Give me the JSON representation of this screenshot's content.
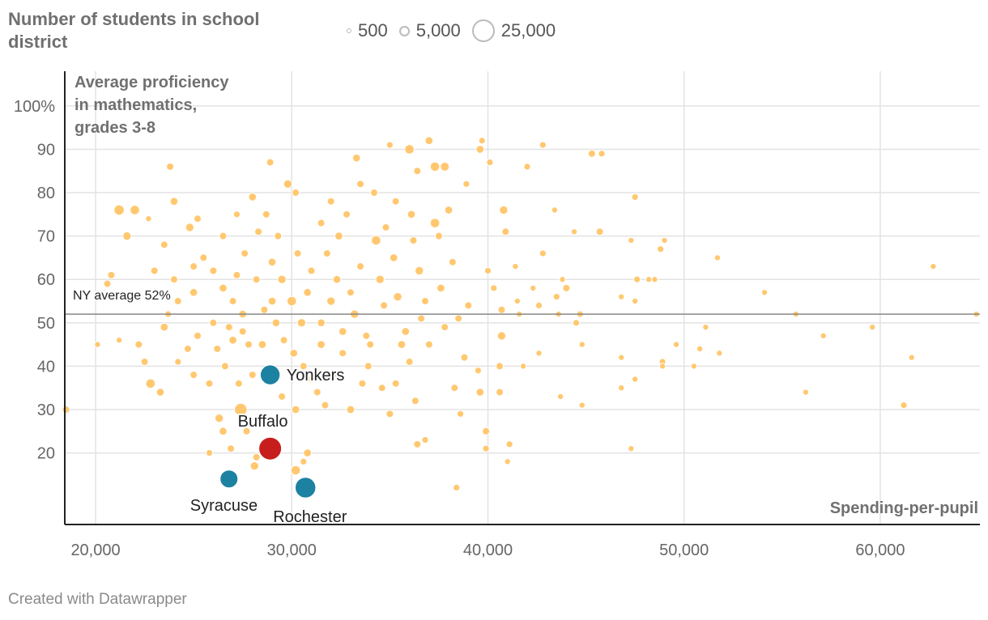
{
  "legend": {
    "title": "Number of students in school district",
    "items": [
      {
        "label": "500",
        "students": 500
      },
      {
        "label": "5,000",
        "students": 5000
      },
      {
        "label": "25,000",
        "students": 25000
      }
    ]
  },
  "footer": "Created with Datawrapper",
  "colors": {
    "point": "#ffc870",
    "highlight_blue": "#1d81a2",
    "highlight_red": "#c71e1d",
    "avg_line": "#888888",
    "grid": "#e3e3e3"
  },
  "chart_data": {
    "type": "scatter",
    "ylabel": "Average proficiency in mathematics, grades 3-8",
    "ylabel_lines": [
      "Average proficiency",
      "in mathematics,",
      "grades 3-8"
    ],
    "xlabel": "Spending-per-pupil",
    "xlim": [
      18430,
      65080
    ],
    "ylim": [
      3.5,
      108
    ],
    "xticks": [
      {
        "v": 20000,
        "label": "20,000"
      },
      {
        "v": 30000,
        "label": "30,000"
      },
      {
        "v": 40000,
        "label": "40,000"
      },
      {
        "v": 50000,
        "label": "50,000"
      },
      {
        "v": 60000,
        "label": "60,000"
      }
    ],
    "yticks": [
      {
        "v": 100,
        "label": "100%"
      },
      {
        "v": 90,
        "label": "90"
      },
      {
        "v": 80,
        "label": "80"
      },
      {
        "v": 70,
        "label": "70"
      },
      {
        "v": 60,
        "label": "60"
      },
      {
        "v": 50,
        "label": "50"
      },
      {
        "v": 40,
        "label": "40"
      },
      {
        "v": 30,
        "label": "30"
      },
      {
        "v": 20,
        "label": "20"
      }
    ],
    "reference_line": {
      "value": 52,
      "label": "NY average 52%"
    },
    "point_fields": [
      "spending",
      "proficiency",
      "students"
    ],
    "points": [
      [
        18500,
        30,
        3000
      ],
      [
        21200,
        76,
        6000
      ],
      [
        22000,
        76,
        5000
      ],
      [
        21600,
        70,
        4000
      ],
      [
        20600,
        59,
        3000
      ],
      [
        20100,
        45,
        2000
      ],
      [
        20800,
        61,
        3000
      ],
      [
        21200,
        46,
        2000
      ],
      [
        23800,
        86,
        3000
      ],
      [
        24000,
        78,
        3500
      ],
      [
        24800,
        72,
        4000
      ],
      [
        25200,
        74,
        3000
      ],
      [
        24000,
        60,
        3000
      ],
      [
        25000,
        57,
        3500
      ],
      [
        23500,
        49,
        3500
      ],
      [
        22800,
        36,
        5000
      ],
      [
        23300,
        34,
        3500
      ],
      [
        22500,
        41,
        3000
      ],
      [
        22200,
        45,
        3000
      ],
      [
        23000,
        62,
        3000
      ],
      [
        23500,
        68,
        3000
      ],
      [
        22700,
        74,
        2000
      ],
      [
        26300,
        28,
        4000
      ],
      [
        26500,
        25,
        3500
      ],
      [
        25800,
        20,
        2500
      ],
      [
        26900,
        21,
        3000
      ],
      [
        27400,
        30,
        9000
      ],
      [
        26600,
        40,
        3000
      ],
      [
        27000,
        46,
        3500
      ],
      [
        27500,
        48,
        3000
      ],
      [
        28000,
        79,
        3500
      ],
      [
        28900,
        87,
        3000
      ],
      [
        29800,
        82,
        4000
      ],
      [
        30200,
        80,
        3000
      ],
      [
        28300,
        71,
        3000
      ],
      [
        29000,
        64,
        3500
      ],
      [
        29500,
        60,
        4000
      ],
      [
        30000,
        55,
        5000
      ],
      [
        30500,
        50,
        4000
      ],
      [
        29000,
        55,
        3500
      ],
      [
        28500,
        45,
        3500
      ],
      [
        27800,
        45,
        3000
      ],
      [
        28000,
        38,
        3000
      ],
      [
        27300,
        36,
        3000
      ],
      [
        29500,
        33,
        3000
      ],
      [
        30200,
        30,
        3500
      ],
      [
        30800,
        20,
        3500
      ],
      [
        30200,
        16,
        5000
      ],
      [
        30600,
        18,
        2500
      ],
      [
        28100,
        17,
        4000
      ],
      [
        28200,
        19,
        3000
      ],
      [
        27700,
        25,
        3000
      ],
      [
        31000,
        62,
        3000
      ],
      [
        31500,
        73,
        3000
      ],
      [
        32000,
        78,
        3000
      ],
      [
        32400,
        70,
        3500
      ],
      [
        32300,
        60,
        3500
      ],
      [
        32000,
        55,
        4000
      ],
      [
        31500,
        50,
        3500
      ],
      [
        32600,
        43,
        3000
      ],
      [
        33200,
        52,
        4000
      ],
      [
        33600,
        36,
        3000
      ],
      [
        33000,
        30,
        3500
      ],
      [
        33800,
        47,
        3000
      ],
      [
        33300,
        88,
        3500
      ],
      [
        33500,
        82,
        3000
      ],
      [
        34200,
        80,
        3000
      ],
      [
        34300,
        69,
        5000
      ],
      [
        34500,
        60,
        4000
      ],
      [
        34000,
        45,
        3000
      ],
      [
        34600,
        35,
        3000
      ],
      [
        35000,
        91,
        2500
      ],
      [
        35300,
        78,
        3000
      ],
      [
        35200,
        65,
        3500
      ],
      [
        35400,
        56,
        4000
      ],
      [
        35600,
        45,
        3500
      ],
      [
        35000,
        29,
        3000
      ],
      [
        36000,
        90,
        5000
      ],
      [
        36400,
        85,
        3000
      ],
      [
        36100,
        75,
        3500
      ],
      [
        36200,
        69,
        3000
      ],
      [
        36500,
        62,
        4000
      ],
      [
        36600,
        51,
        3000
      ],
      [
        36000,
        41,
        3000
      ],
      [
        36400,
        22,
        3000
      ],
      [
        37000,
        92,
        3500
      ],
      [
        37300,
        86,
        5000
      ],
      [
        37300,
        73,
        5000
      ],
      [
        37500,
        70,
        3000
      ],
      [
        37600,
        58,
        3500
      ],
      [
        37000,
        45,
        3000
      ],
      [
        36800,
        23,
        2500
      ],
      [
        37800,
        86,
        4500
      ],
      [
        38000,
        76,
        3500
      ],
      [
        38200,
        64,
        3000
      ],
      [
        38500,
        51,
        3000
      ],
      [
        38800,
        42,
        3000
      ],
      [
        38300,
        35,
        3000
      ],
      [
        38600,
        29,
        2500
      ],
      [
        38400,
        12,
        2500
      ],
      [
        38900,
        82,
        2500
      ],
      [
        39600,
        90,
        3500
      ],
      [
        39700,
        92,
        2500
      ],
      [
        39000,
        54,
        3000
      ],
      [
        39500,
        39,
        2500
      ],
      [
        39600,
        34,
        3500
      ],
      [
        39900,
        25,
        3000
      ],
      [
        39900,
        21,
        2500
      ],
      [
        40100,
        87,
        2500
      ],
      [
        40000,
        62,
        2500
      ],
      [
        40300,
        58,
        2500
      ],
      [
        40700,
        53,
        3000
      ],
      [
        40700,
        47,
        4000
      ],
      [
        40800,
        76,
        4000
      ],
      [
        40900,
        71,
        3000
      ],
      [
        40600,
        40,
        3000
      ],
      [
        40600,
        34,
        3000
      ],
      [
        41100,
        22,
        2500
      ],
      [
        41000,
        18,
        2000
      ],
      [
        41400,
        63,
        2000
      ],
      [
        41500,
        55,
        2000
      ],
      [
        41600,
        52,
        2000
      ],
      [
        41800,
        40,
        2000
      ],
      [
        42000,
        86,
        2500
      ],
      [
        42300,
        58,
        2000
      ],
      [
        42600,
        54,
        2500
      ],
      [
        42600,
        43,
        2000
      ],
      [
        42800,
        91,
        2500
      ],
      [
        42800,
        66,
        2500
      ],
      [
        43400,
        76,
        2000
      ],
      [
        43500,
        56,
        2500
      ],
      [
        43600,
        52,
        2000
      ],
      [
        43700,
        33,
        2000
      ],
      [
        43800,
        60,
        2000
      ],
      [
        44000,
        58,
        3000
      ],
      [
        44400,
        71,
        2000
      ],
      [
        44700,
        52,
        2500
      ],
      [
        44500,
        50,
        2500
      ],
      [
        44800,
        45,
        2000
      ],
      [
        44800,
        31,
        2000
      ],
      [
        45300,
        89,
        3000
      ],
      [
        45800,
        89,
        2500
      ],
      [
        45700,
        71,
        3000
      ],
      [
        46800,
        56,
        2000
      ],
      [
        46800,
        42,
        2000
      ],
      [
        46800,
        35,
        2000
      ],
      [
        47300,
        69,
        2000
      ],
      [
        47300,
        21,
        2000
      ],
      [
        47500,
        79,
        2500
      ],
      [
        47600,
        60,
        2500
      ],
      [
        47500,
        55,
        2000
      ],
      [
        47500,
        37,
        2000
      ],
      [
        48200,
        60,
        2000
      ],
      [
        48500,
        60,
        2000
      ],
      [
        48800,
        67,
        2500
      ],
      [
        49000,
        69,
        2000
      ],
      [
        48900,
        41,
        2500
      ],
      [
        48900,
        40,
        2000
      ],
      [
        49600,
        45,
        2000
      ],
      [
        50500,
        40,
        2000
      ],
      [
        50800,
        44,
        2000
      ],
      [
        51100,
        49,
        2000
      ],
      [
        51700,
        65,
        2000
      ],
      [
        51800,
        43,
        2000
      ],
      [
        54100,
        57,
        2000
      ],
      [
        55700,
        52,
        2000
      ],
      [
        56200,
        34,
        2000
      ],
      [
        57100,
        47,
        2000
      ],
      [
        59600,
        49,
        2000
      ],
      [
        61200,
        31,
        2500
      ],
      [
        61600,
        42,
        2000
      ],
      [
        62700,
        63,
        2000
      ],
      [
        64900,
        52,
        2000
      ],
      [
        25500,
        65,
        3000
      ],
      [
        26000,
        62,
        3000
      ],
      [
        26500,
        58,
        3500
      ],
      [
        27000,
        55,
        3000
      ],
      [
        27500,
        52,
        3500
      ],
      [
        26000,
        50,
        3000
      ],
      [
        25200,
        47,
        3000
      ],
      [
        24700,
        44,
        3000
      ],
      [
        24200,
        41,
        2500
      ],
      [
        25000,
        38,
        3000
      ],
      [
        25800,
        36,
        3000
      ],
      [
        26200,
        44,
        3000
      ],
      [
        26800,
        49,
        3000
      ],
      [
        27200,
        61,
        3000
      ],
      [
        27600,
        66,
        3000
      ],
      [
        28200,
        60,
        3000
      ],
      [
        28600,
        53,
        3000
      ],
      [
        29200,
        50,
        3500
      ],
      [
        29600,
        46,
        3000
      ],
      [
        30100,
        43,
        3500
      ],
      [
        30600,
        40,
        3000
      ],
      [
        31000,
        37,
        3000
      ],
      [
        31300,
        34,
        3000
      ],
      [
        31700,
        31,
        3000
      ],
      [
        32200,
        38,
        3000
      ],
      [
        32600,
        48,
        3500
      ],
      [
        33000,
        57,
        3000
      ],
      [
        33500,
        63,
        3000
      ],
      [
        31500,
        45,
        3500
      ],
      [
        30800,
        57,
        3500
      ],
      [
        30300,
        66,
        3000
      ],
      [
        29300,
        70,
        3000
      ],
      [
        28700,
        75,
        3000
      ],
      [
        27200,
        75,
        2500
      ],
      [
        26500,
        70,
        3000
      ],
      [
        25000,
        63,
        3000
      ],
      [
        24200,
        55,
        3000
      ],
      [
        23700,
        52,
        2500
      ],
      [
        31800,
        66,
        3000
      ],
      [
        32800,
        75,
        3000
      ],
      [
        34800,
        72,
        3000
      ],
      [
        35800,
        48,
        3500
      ],
      [
        34700,
        54,
        3000
      ],
      [
        36800,
        55,
        3000
      ],
      [
        37800,
        49,
        3000
      ],
      [
        33900,
        40,
        3000
      ],
      [
        35300,
        36,
        3000
      ],
      [
        36300,
        32,
        3000
      ]
    ],
    "highlights": [
      {
        "name": "Yonkers",
        "spending": 28900,
        "proficiency": 38,
        "students": 22000,
        "color": "#1d81a2",
        "label_pos": "right"
      },
      {
        "name": "Buffalo",
        "spending": 28900,
        "proficiency": 21,
        "students": 29000,
        "color": "#c71e1d",
        "label_pos": "above"
      },
      {
        "name": "Syracuse",
        "spending": 26800,
        "proficiency": 14,
        "students": 18000,
        "color": "#1d81a2",
        "label_pos": "below"
      },
      {
        "name": "Rochester",
        "spending": 30700,
        "proficiency": 12,
        "students": 24000,
        "color": "#1d81a2",
        "label_pos": "below"
      }
    ]
  }
}
